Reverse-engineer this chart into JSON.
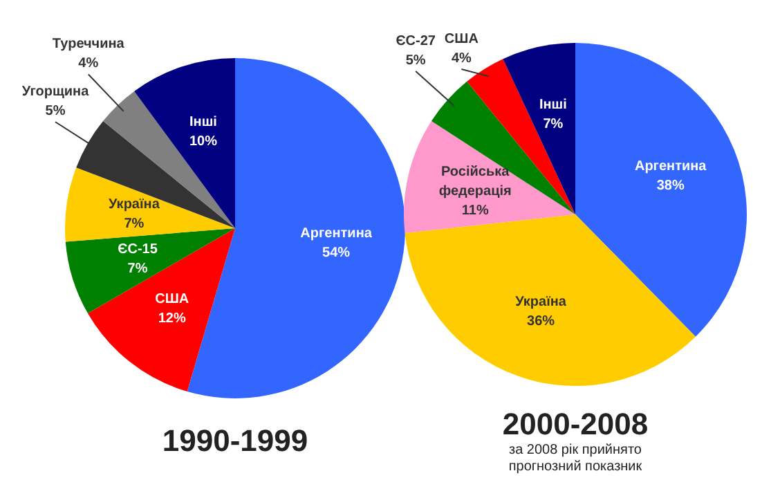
{
  "chart_data": [
    {
      "type": "pie",
      "title": "1990-1999",
      "categories": [
        "Аргентина",
        "США",
        "ЄС-15",
        "Україна",
        "Угорщина",
        "Туреччина",
        "Інші"
      ],
      "values": [
        54,
        12,
        7,
        7,
        5,
        4,
        10
      ],
      "colors": [
        "#3366ff",
        "#ff0000",
        "#008000",
        "#ffcc00",
        "#333333",
        "#808080",
        "#000080"
      ],
      "value_labels": [
        "54%",
        "12%",
        "7%",
        "7%",
        "5%",
        "4%",
        "10%"
      ]
    },
    {
      "type": "pie",
      "title": "2000-2008",
      "subtitle": "за 2008 рік прийнято прогнозний показник",
      "categories": [
        "Аргентина",
        "Україна",
        "Російська федерація",
        "ЄС-27",
        "США",
        "Інші"
      ],
      "values": [
        38,
        36,
        11,
        5,
        4,
        7
      ],
      "colors": [
        "#3366ff",
        "#ffcc00",
        "#ff99cc",
        "#008000",
        "#ff0000",
        "#000080"
      ],
      "value_labels": [
        "38%",
        "36%",
        "11%",
        "5%",
        "4%",
        "7%"
      ]
    }
  ]
}
